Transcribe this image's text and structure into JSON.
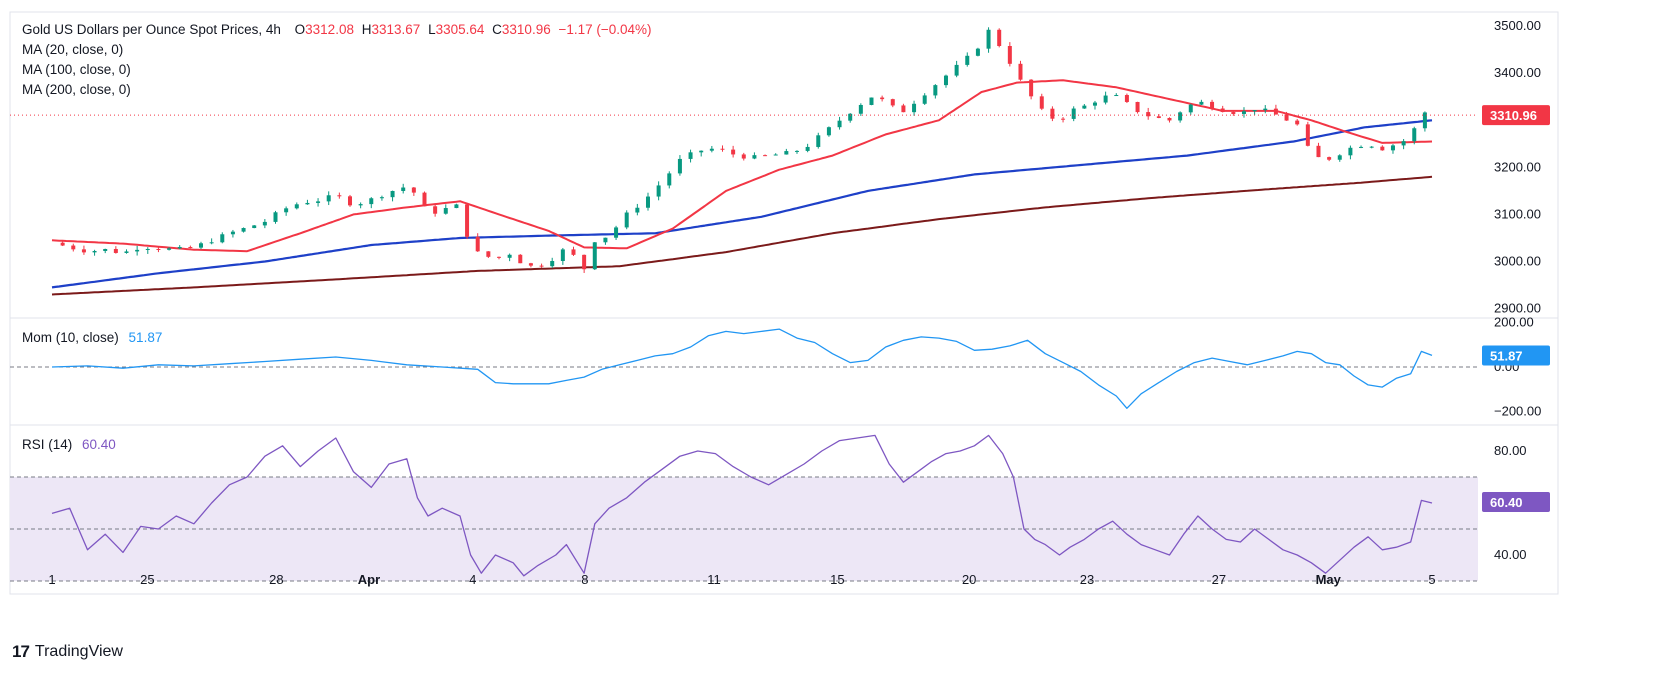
{
  "legend": {
    "title": "Gold US Dollars per Ounce Spot Prices, 4h",
    "open_label": "O",
    "open": "3312.08",
    "high_label": "H",
    "high": "3313.67",
    "low_label": "L",
    "low": "3305.64",
    "close_label": "C",
    "close": "3310.96",
    "change": "−1.17 (−0.04%)",
    "ma1": "MA (20, close, 0)",
    "ma2": "MA (100, close, 0)",
    "ma3": "MA (200, close, 0)",
    "mom_label": "Mom (10, close)",
    "mom_value": "51.87",
    "rsi_label": "RSI (14)",
    "rsi_value": "60.40"
  },
  "branding": {
    "logo": "17",
    "name": "TradingView"
  },
  "colors": {
    "up": "#089981",
    "down": "#f23645",
    "ma20": "#f23645",
    "ma100": "#1e40c8",
    "ma200": "#7b1a1a",
    "mom": "#2196f3",
    "rsi": "#7e57c2",
    "rsi_band": "#ede7f6"
  },
  "chart_data": [
    {
      "type": "candlestick",
      "panel": "price",
      "ylim": [
        2880,
        3530
      ],
      "y_ticks": [
        "3500.00",
        "3400.00",
        "3300.00",
        "3200.00",
        "3100.00",
        "3000.00",
        "2900.00"
      ],
      "x_ticks": [
        "1",
        "25",
        "28",
        "Apr",
        "4",
        "8",
        "11",
        "15",
        "20",
        "23",
        "27",
        "May",
        "5"
      ],
      "last_price_label": "3310.96",
      "last_price": 3310.96,
      "close_path": [
        [
          0,
          3040
        ],
        [
          5,
          3030
        ],
        [
          10,
          3022
        ],
        [
          15,
          3025
        ],
        [
          20,
          3018
        ],
        [
          25,
          3032
        ],
        [
          30,
          3028
        ],
        [
          35,
          3025
        ],
        [
          40,
          3030
        ],
        [
          45,
          3045
        ],
        [
          50,
          3060
        ],
        [
          55,
          3072
        ],
        [
          60,
          3085
        ],
        [
          65,
          3110
        ],
        [
          70,
          3125
        ],
        [
          75,
          3130
        ],
        [
          80,
          3140
        ],
        [
          85,
          3120
        ],
        [
          90,
          3132
        ],
        [
          95,
          3148
        ],
        [
          100,
          3160
        ],
        [
          103,
          3140
        ],
        [
          106,
          3100
        ],
        [
          110,
          3110
        ],
        [
          115,
          3120
        ],
        [
          118,
          3025
        ],
        [
          121,
          3015
        ],
        [
          125,
          3005
        ],
        [
          130,
          3020
        ],
        [
          133,
          2990
        ],
        [
          137,
          2990
        ],
        [
          142,
          3010
        ],
        [
          145,
          3030
        ],
        [
          150,
          2985
        ],
        [
          153,
          3045
        ],
        [
          157,
          3055
        ],
        [
          162,
          3100
        ],
        [
          167,
          3130
        ],
        [
          172,
          3170
        ],
        [
          177,
          3215
        ],
        [
          182,
          3235
        ],
        [
          187,
          3240
        ],
        [
          192,
          3228
        ],
        [
          197,
          3220
        ],
        [
          202,
          3225
        ],
        [
          207,
          3230
        ],
        [
          212,
          3240
        ],
        [
          217,
          3270
        ],
        [
          222,
          3300
        ],
        [
          227,
          3330
        ],
        [
          232,
          3355
        ],
        [
          236,
          3330
        ],
        [
          240,
          3320
        ],
        [
          244,
          3345
        ],
        [
          248,
          3370
        ],
        [
          252,
          3395
        ],
        [
          256,
          3420
        ],
        [
          260,
          3445
        ],
        [
          264,
          3490
        ],
        [
          268,
          3450
        ],
        [
          271,
          3410
        ],
        [
          274,
          3370
        ],
        [
          277,
          3340
        ],
        [
          280,
          3310
        ],
        [
          284,
          3300
        ],
        [
          287,
          3320
        ],
        [
          291,
          3330
        ],
        [
          295,
          3345
        ],
        [
          299,
          3355
        ],
        [
          303,
          3335
        ],
        [
          307,
          3315
        ],
        [
          311,
          3305
        ],
        [
          315,
          3300
        ],
        [
          319,
          3325
        ],
        [
          323,
          3340
        ],
        [
          327,
          3330
        ],
        [
          331,
          3320
        ],
        [
          335,
          3315
        ],
        [
          339,
          3325
        ],
        [
          343,
          3318
        ],
        [
          347,
          3305
        ],
        [
          351,
          3290
        ],
        [
          355,
          3225
        ],
        [
          359,
          3215
        ],
        [
          363,
          3230
        ],
        [
          367,
          3245
        ],
        [
          371,
          3250
        ],
        [
          375,
          3240
        ],
        [
          379,
          3250
        ],
        [
          383,
          3262
        ],
        [
          386,
          3320
        ],
        [
          389,
          3311
        ]
      ],
      "ma20_path": [
        [
          0,
          3045
        ],
        [
          20,
          3038
        ],
        [
          40,
          3025
        ],
        [
          55,
          3022
        ],
        [
          70,
          3060
        ],
        [
          85,
          3100
        ],
        [
          100,
          3115
        ],
        [
          115,
          3128
        ],
        [
          128,
          3095
        ],
        [
          140,
          3065
        ],
        [
          150,
          3030
        ],
        [
          162,
          3028
        ],
        [
          175,
          3070
        ],
        [
          190,
          3150
        ],
        [
          205,
          3195
        ],
        [
          220,
          3225
        ],
        [
          235,
          3270
        ],
        [
          250,
          3300
        ],
        [
          262,
          3360
        ],
        [
          272,
          3380
        ],
        [
          285,
          3385
        ],
        [
          300,
          3370
        ],
        [
          315,
          3345
        ],
        [
          330,
          3320
        ],
        [
          345,
          3320
        ],
        [
          355,
          3300
        ],
        [
          365,
          3275
        ],
        [
          375,
          3252
        ],
        [
          389,
          3255
        ]
      ],
      "ma100_path": [
        [
          0,
          2945
        ],
        [
          30,
          2975
        ],
        [
          60,
          3000
        ],
        [
          90,
          3035
        ],
        [
          115,
          3050
        ],
        [
          140,
          3055
        ],
        [
          170,
          3060
        ],
        [
          200,
          3095
        ],
        [
          230,
          3150
        ],
        [
          260,
          3185
        ],
        [
          290,
          3205
        ],
        [
          320,
          3225
        ],
        [
          350,
          3255
        ],
        [
          370,
          3285
        ],
        [
          389,
          3300
        ]
      ],
      "ma200_path": [
        [
          0,
          2930
        ],
        [
          40,
          2945
        ],
        [
          80,
          2962
        ],
        [
          120,
          2980
        ],
        [
          160,
          2990
        ],
        [
          190,
          3020
        ],
        [
          220,
          3060
        ],
        [
          250,
          3090
        ],
        [
          280,
          3115
        ],
        [
          310,
          3135
        ],
        [
          340,
          3152
        ],
        [
          370,
          3168
        ],
        [
          389,
          3180
        ]
      ]
    },
    {
      "type": "line",
      "panel": "momentum",
      "name": "Mom (10, close)",
      "ylim": [
        -260,
        220
      ],
      "y_ticks": [
        "200.00",
        "0.00",
        "−200.00"
      ],
      "last_value_label": "51.87",
      "values": [
        [
          0,
          0
        ],
        [
          10,
          5
        ],
        [
          20,
          -5
        ],
        [
          30,
          10
        ],
        [
          40,
          5
        ],
        [
          50,
          15
        ],
        [
          60,
          25
        ],
        [
          70,
          35
        ],
        [
          80,
          45
        ],
        [
          90,
          30
        ],
        [
          100,
          10
        ],
        [
          110,
          0
        ],
        [
          120,
          -10
        ],
        [
          125,
          -70
        ],
        [
          130,
          -75
        ],
        [
          140,
          -75
        ],
        [
          145,
          -60
        ],
        [
          150,
          -45
        ],
        [
          155,
          -10
        ],
        [
          160,
          10
        ],
        [
          165,
          30
        ],
        [
          170,
          50
        ],
        [
          175,
          60
        ],
        [
          180,
          90
        ],
        [
          185,
          140
        ],
        [
          190,
          160
        ],
        [
          195,
          150
        ],
        [
          200,
          160
        ],
        [
          205,
          170
        ],
        [
          210,
          130
        ],
        [
          215,
          110
        ],
        [
          220,
          60
        ],
        [
          225,
          20
        ],
        [
          230,
          30
        ],
        [
          235,
          90
        ],
        [
          240,
          120
        ],
        [
          245,
          135
        ],
        [
          250,
          130
        ],
        [
          255,
          115
        ],
        [
          260,
          75
        ],
        [
          265,
          80
        ],
        [
          270,
          95
        ],
        [
          275,
          120
        ],
        [
          280,
          60
        ],
        [
          285,
          20
        ],
        [
          290,
          -20
        ],
        [
          295,
          -80
        ],
        [
          300,
          -130
        ],
        [
          303,
          -185
        ],
        [
          307,
          -120
        ],
        [
          312,
          -70
        ],
        [
          317,
          -20
        ],
        [
          322,
          20
        ],
        [
          327,
          40
        ],
        [
          332,
          25
        ],
        [
          337,
          10
        ],
        [
          342,
          30
        ],
        [
          347,
          50
        ],
        [
          351,
          70
        ],
        [
          355,
          60
        ],
        [
          359,
          20
        ],
        [
          363,
          10
        ],
        [
          367,
          -40
        ],
        [
          371,
          -80
        ],
        [
          375,
          -90
        ],
        [
          379,
          -50
        ],
        [
          383,
          -30
        ],
        [
          386,
          70
        ],
        [
          389,
          52
        ]
      ]
    },
    {
      "type": "line",
      "panel": "rsi",
      "name": "RSI (14)",
      "ylim": [
        25,
        90
      ],
      "y_ticks": [
        "80.00",
        "40.00"
      ],
      "band": [
        30,
        70
      ],
      "midline": 50,
      "last_value_label": "60.40",
      "values": [
        [
          0,
          56
        ],
        [
          5,
          58
        ],
        [
          10,
          42
        ],
        [
          15,
          48
        ],
        [
          20,
          41
        ],
        [
          25,
          51
        ],
        [
          30,
          50
        ],
        [
          35,
          55
        ],
        [
          40,
          52
        ],
        [
          45,
          60
        ],
        [
          50,
          67
        ],
        [
          55,
          70
        ],
        [
          60,
          78
        ],
        [
          65,
          82
        ],
        [
          70,
          74
        ],
        [
          75,
          80
        ],
        [
          80,
          85
        ],
        [
          85,
          72
        ],
        [
          90,
          66
        ],
        [
          95,
          75
        ],
        [
          100,
          77
        ],
        [
          103,
          62
        ],
        [
          106,
          55
        ],
        [
          110,
          58
        ],
        [
          115,
          55
        ],
        [
          118,
          40
        ],
        [
          121,
          33
        ],
        [
          125,
          40
        ],
        [
          130,
          37
        ],
        [
          133,
          32
        ],
        [
          137,
          36
        ],
        [
          142,
          40
        ],
        [
          145,
          44
        ],
        [
          150,
          33
        ],
        [
          153,
          52
        ],
        [
          157,
          58
        ],
        [
          162,
          62
        ],
        [
          167,
          68
        ],
        [
          172,
          73
        ],
        [
          177,
          78
        ],
        [
          182,
          80
        ],
        [
          187,
          79
        ],
        [
          192,
          74
        ],
        [
          197,
          70
        ],
        [
          202,
          67
        ],
        [
          207,
          71
        ],
        [
          212,
          75
        ],
        [
          217,
          80
        ],
        [
          222,
          84
        ],
        [
          227,
          85
        ],
        [
          232,
          86
        ],
        [
          236,
          75
        ],
        [
          240,
          68
        ],
        [
          244,
          72
        ],
        [
          248,
          76
        ],
        [
          252,
          79
        ],
        [
          256,
          80
        ],
        [
          260,
          82
        ],
        [
          264,
          86
        ],
        [
          268,
          79
        ],
        [
          271,
          70
        ],
        [
          274,
          50
        ],
        [
          277,
          46
        ],
        [
          280,
          44
        ],
        [
          284,
          40
        ],
        [
          287,
          43
        ],
        [
          291,
          46
        ],
        [
          295,
          50
        ],
        [
          299,
          53
        ],
        [
          303,
          48
        ],
        [
          307,
          44
        ],
        [
          311,
          42
        ],
        [
          315,
          40
        ],
        [
          319,
          48
        ],
        [
          323,
          55
        ],
        [
          327,
          50
        ],
        [
          331,
          46
        ],
        [
          335,
          45
        ],
        [
          339,
          50
        ],
        [
          343,
          46
        ],
        [
          347,
          42
        ],
        [
          351,
          40
        ],
        [
          355,
          37
        ],
        [
          359,
          33
        ],
        [
          363,
          38
        ],
        [
          367,
          43
        ],
        [
          371,
          47
        ],
        [
          375,
          42
        ],
        [
          379,
          43
        ],
        [
          383,
          45
        ],
        [
          386,
          61
        ],
        [
          389,
          60
        ]
      ]
    }
  ]
}
